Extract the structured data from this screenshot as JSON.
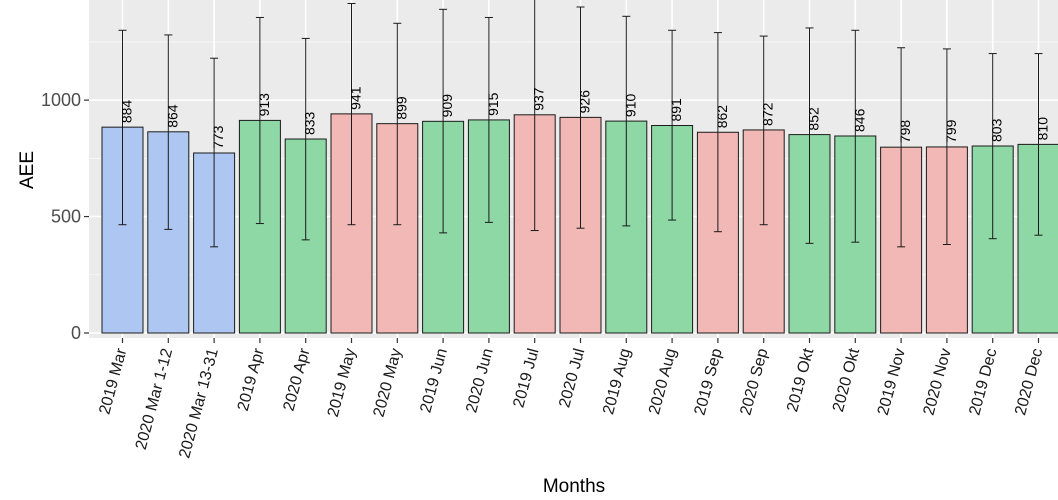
{
  "chart_data": {
    "type": "bar",
    "xlabel": "Months",
    "ylabel": "AEE",
    "ylim": [
      0,
      1430
    ],
    "yticks": [
      0,
      500,
      1000
    ],
    "grid": true,
    "legend": "none",
    "categories": [
      "2019 Mar",
      "2020 Mar 1-12",
      "2020 Mar 13-31",
      "2019 Apr",
      "2020 Apr",
      "2019 May",
      "2020 May",
      "2019 Jun",
      "2020 Jun",
      "2019 Jul",
      "2020 Jul",
      "2019 Aug",
      "2020 Aug",
      "2019 Sep",
      "2020 Sep",
      "2019 Okt",
      "2020 Okt",
      "2019 Nov",
      "2020 Nov",
      "2019 Dec",
      "2020 Dec"
    ],
    "values": [
      884,
      864,
      773,
      913,
      833,
      941,
      899,
      909,
      915,
      937,
      926,
      910,
      891,
      862,
      872,
      852,
      846,
      798,
      799,
      803,
      810
    ],
    "labels": [
      "884",
      "864",
      "773",
      "913",
      "833",
      "941",
      "899",
      "909",
      "915",
      "937",
      "926",
      "910",
      "891",
      "862",
      "872",
      "852",
      "846",
      "798",
      "799",
      "803",
      "810"
    ],
    "error_low": [
      465,
      445,
      370,
      470,
      400,
      465,
      465,
      430,
      475,
      440,
      450,
      460,
      485,
      435,
      465,
      385,
      390,
      370,
      380,
      405,
      420
    ],
    "error_high": [
      1300,
      1280,
      1180,
      1355,
      1265,
      1415,
      1330,
      1390,
      1355,
      1435,
      1400,
      1360,
      1300,
      1290,
      1275,
      1310,
      1300,
      1225,
      1220,
      1200,
      1200
    ],
    "bar_colors": [
      "#aec7f2",
      "#aec7f2",
      "#aec7f2",
      "#8dd8a5",
      "#8dd8a5",
      "#f2b8b5",
      "#f2b8b5",
      "#8dd8a5",
      "#8dd8a5",
      "#f2b8b5",
      "#f2b8b5",
      "#8dd8a5",
      "#8dd8a5",
      "#f2b8b5",
      "#f2b8b5",
      "#8dd8a5",
      "#8dd8a5",
      "#f2b8b5",
      "#f2b8b5",
      "#8dd8a5",
      "#8dd8a5"
    ],
    "panel_color": "#ebebeb",
    "grid_color": "#ffffff",
    "bar_border_color": "#1a1a1a"
  }
}
